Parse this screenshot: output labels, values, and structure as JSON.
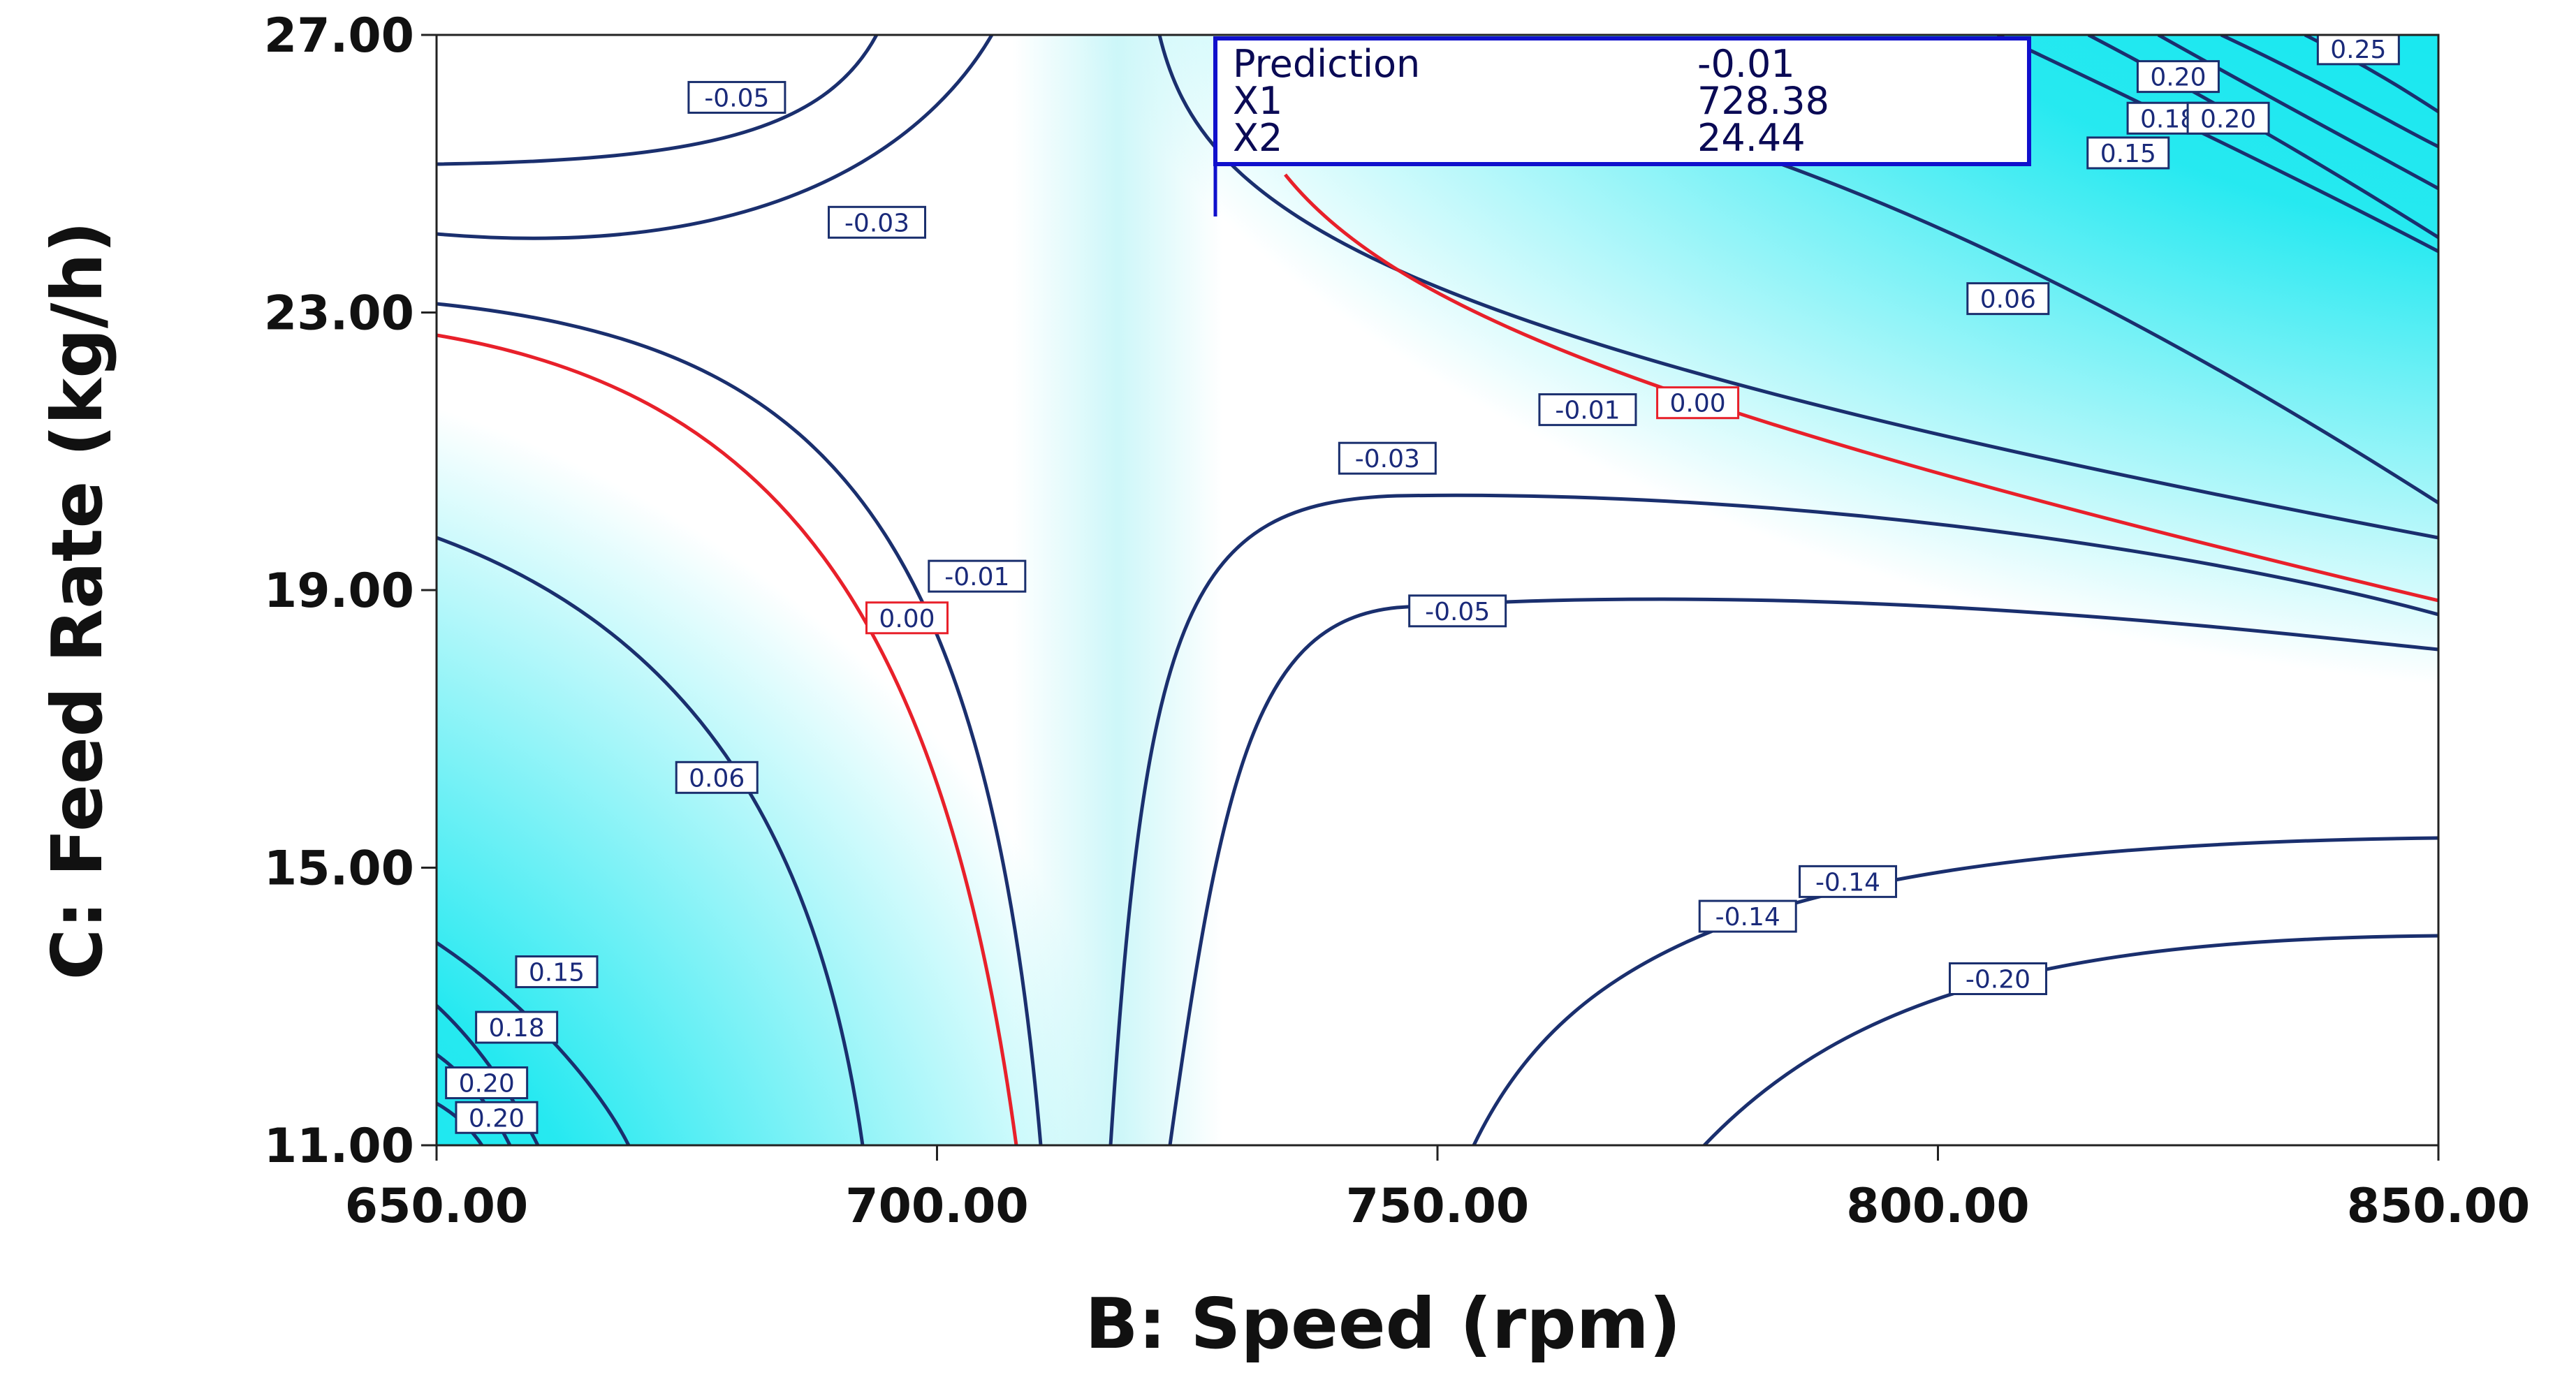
{
  "chart_data": {
    "type": "contour",
    "xlabel": "B: Speed (rpm)",
    "ylabel": "C: Feed Rate (kg/h)",
    "xlim": [
      650,
      850
    ],
    "ylim": [
      11,
      27
    ],
    "x_ticks": [
      "650.00",
      "700.00",
      "750.00",
      "800.00",
      "850.00"
    ],
    "y_ticks": [
      "11.00",
      "15.00",
      "19.00",
      "23.00",
      "27.00"
    ],
    "grid": false,
    "colors": {
      "high": "#00e5ee",
      "low": "#ffffff",
      "contour": "#1a2f6e",
      "zero_contour": "#e8202a",
      "prediction_box": "#1010cc"
    },
    "contour_labels": [
      {
        "text": "-0.05",
        "x": 680,
        "y": 26.1
      },
      {
        "text": "-0.03",
        "x": 694,
        "y": 24.3
      },
      {
        "text": "-0.01",
        "x": 704,
        "y": 19.2
      },
      {
        "text": "0.00",
        "x": 697,
        "y": 18.6,
        "zero": true
      },
      {
        "text": "0.06",
        "x": 678,
        "y": 16.3
      },
      {
        "text": "0.15",
        "x": 662,
        "y": 13.5
      },
      {
        "text": "0.18",
        "x": 658,
        "y": 12.7
      },
      {
        "text": "0.20",
        "x": 655,
        "y": 11.9
      },
      {
        "text": "0.20",
        "x": 656,
        "y": 11.4
      },
      {
        "text": "-0.03",
        "x": 745,
        "y": 20.9
      },
      {
        "text": "-0.05",
        "x": 752,
        "y": 18.7
      },
      {
        "text": "-0.01",
        "x": 765,
        "y": 21.6
      },
      {
        "text": "0.00",
        "x": 776,
        "y": 21.7,
        "zero": true
      },
      {
        "text": "0.06",
        "x": 807,
        "y": 23.2
      },
      {
        "text": "-0.14",
        "x": 791,
        "y": 14.8
      },
      {
        "text": "-0.14",
        "x": 781,
        "y": 14.3
      },
      {
        "text": "-0.20",
        "x": 806,
        "y": 13.4
      },
      {
        "text": "0.15",
        "x": 819,
        "y": 25.3
      },
      {
        "text": "0.18",
        "x": 823,
        "y": 25.8
      },
      {
        "text": "0.20",
        "x": 829,
        "y": 25.8
      },
      {
        "text": "0.20",
        "x": 824,
        "y": 26.4
      },
      {
        "text": "0.25",
        "x": 842,
        "y": 26.8
      }
    ],
    "prediction": {
      "rows": [
        {
          "label": "Prediction",
          "value": "-0.01"
        },
        {
          "label": "X1",
          "value": "728.38"
        },
        {
          "label": "X2",
          "value": "24.44"
        }
      ],
      "x": 728.38,
      "y": 24.44
    }
  }
}
